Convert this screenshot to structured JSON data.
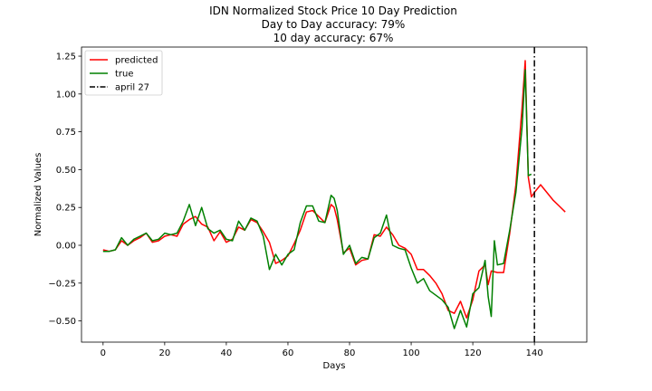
{
  "chart_data": {
    "type": "line",
    "title_lines": [
      "IDN Normalized Stock Price 10 Day Prediction",
      "Day to Day accuracy: 79%",
      "10 day accuracy: 67%"
    ],
    "xlabel": "Days",
    "ylabel": "Normalized Values",
    "xlim": [
      -7,
      157
    ],
    "ylim": [
      -0.64,
      1.31
    ],
    "xticks": [
      0,
      20,
      40,
      60,
      80,
      100,
      120,
      140
    ],
    "yticks": [
      -0.5,
      -0.25,
      0.0,
      0.25,
      0.5,
      0.75,
      1.0,
      1.25
    ],
    "ytick_labels": [
      "−0.50",
      "−0.25",
      "0.00",
      "0.25",
      "0.50",
      "0.75",
      "1.00",
      "1.25"
    ],
    "legend_position": "upper-left",
    "vline": {
      "x": 140,
      "name": "april 27",
      "color": "#000000",
      "style": "dashdot"
    },
    "series": [
      {
        "name": "predicted",
        "color": "#ff0000",
        "x": [
          0,
          2,
          4,
          6,
          8,
          10,
          12,
          14,
          16,
          18,
          20,
          22,
          24,
          26,
          28,
          30,
          32,
          34,
          36,
          38,
          40,
          42,
          44,
          46,
          48,
          50,
          52,
          54,
          56,
          58,
          60,
          62,
          64,
          66,
          68,
          70,
          72,
          74,
          75,
          76,
          78,
          80,
          82,
          84,
          86,
          88,
          90,
          92,
          94,
          96,
          98,
          100,
          102,
          104,
          106,
          108,
          110,
          112,
          114,
          116,
          118,
          120,
          122,
          124,
          125,
          126,
          128,
          130,
          132,
          134,
          136,
          137,
          138,
          139,
          140,
          142,
          144,
          146,
          148,
          150
        ],
        "y": [
          -0.03,
          -0.04,
          -0.03,
          0.03,
          0.0,
          0.03,
          0.05,
          0.08,
          0.02,
          0.03,
          0.06,
          0.07,
          0.06,
          0.14,
          0.17,
          0.19,
          0.14,
          0.12,
          0.03,
          0.09,
          0.02,
          0.04,
          0.12,
          0.1,
          0.17,
          0.15,
          0.09,
          0.02,
          -0.12,
          -0.1,
          -0.07,
          0.01,
          0.1,
          0.22,
          0.23,
          0.19,
          0.15,
          0.27,
          0.25,
          0.17,
          -0.05,
          -0.02,
          -0.13,
          -0.1,
          -0.09,
          0.07,
          0.06,
          0.12,
          0.07,
          0.0,
          -0.02,
          -0.06,
          -0.16,
          -0.16,
          -0.2,
          -0.25,
          -0.32,
          -0.43,
          -0.45,
          -0.37,
          -0.48,
          -0.36,
          -0.17,
          -0.13,
          -0.26,
          -0.17,
          -0.18,
          -0.18,
          0.08,
          0.4,
          0.91,
          1.22,
          0.45,
          0.32,
          0.35,
          0.4,
          0.35,
          0.3,
          0.26,
          0.22
        ]
      },
      {
        "name": "true",
        "color": "#008000",
        "x": [
          0,
          2,
          4,
          6,
          8,
          10,
          12,
          14,
          16,
          18,
          20,
          22,
          24,
          26,
          28,
          30,
          32,
          34,
          36,
          38,
          40,
          42,
          44,
          46,
          48,
          50,
          52,
          54,
          56,
          58,
          60,
          62,
          64,
          66,
          68,
          70,
          72,
          74,
          75,
          76,
          78,
          80,
          82,
          84,
          86,
          88,
          90,
          92,
          94,
          96,
          98,
          100,
          102,
          104,
          106,
          108,
          110,
          112,
          114,
          116,
          118,
          120,
          122,
          124,
          125,
          126,
          127,
          128,
          130,
          132,
          134,
          136,
          137,
          138,
          139
        ],
        "y": [
          -0.04,
          -0.04,
          -0.03,
          0.05,
          0.0,
          0.04,
          0.06,
          0.08,
          0.03,
          0.04,
          0.08,
          0.07,
          0.08,
          0.16,
          0.27,
          0.13,
          0.25,
          0.11,
          0.08,
          0.1,
          0.04,
          0.03,
          0.16,
          0.1,
          0.18,
          0.16,
          0.06,
          -0.16,
          -0.06,
          -0.13,
          -0.06,
          -0.03,
          0.15,
          0.26,
          0.26,
          0.16,
          0.15,
          0.33,
          0.31,
          0.23,
          -0.06,
          0.0,
          -0.12,
          -0.08,
          -0.09,
          0.05,
          0.08,
          0.2,
          0.0,
          -0.02,
          -0.03,
          -0.15,
          -0.25,
          -0.22,
          -0.3,
          -0.33,
          -0.36,
          -0.41,
          -0.55,
          -0.43,
          -0.54,
          -0.32,
          -0.28,
          -0.1,
          -0.34,
          -0.47,
          0.03,
          -0.13,
          -0.12,
          0.1,
          0.35,
          0.78,
          1.16,
          0.46,
          0.47
        ]
      }
    ]
  }
}
